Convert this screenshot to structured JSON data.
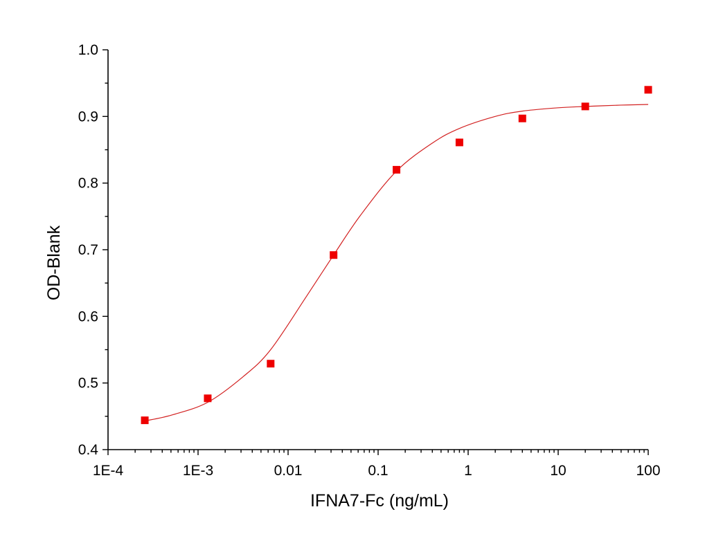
{
  "chart_data": {
    "type": "scatter",
    "xlabel": "IFNA7-Fc (ng/mL)",
    "ylabel": "OD-Blank",
    "x_scale": "log",
    "xlim": [
      0.0001,
      100
    ],
    "ylim": [
      0.4,
      1.0
    ],
    "x_tick_values": [
      0.0001,
      0.001,
      0.01,
      0.1,
      1,
      10,
      100
    ],
    "x_tick_labels": [
      "1E-4",
      "1E-3",
      "0.01",
      "0.1",
      "1",
      "10",
      "100"
    ],
    "y_tick_values": [
      0.4,
      0.5,
      0.6,
      0.7,
      0.8,
      0.9,
      1.0
    ],
    "y_tick_labels": [
      "0.4",
      "0.5",
      "0.6",
      "0.7",
      "0.8",
      "0.9",
      "1.0"
    ],
    "grid": false,
    "legend": "none",
    "series": [
      {
        "type": "scatter",
        "marker": "square",
        "color": "#ee0000",
        "x": [
          0.000256,
          0.00128,
          0.0064,
          0.032,
          0.16,
          0.8,
          4,
          20,
          100
        ],
        "y": [
          0.444,
          0.477,
          0.529,
          0.692,
          0.82,
          0.861,
          0.897,
          0.915,
          0.94
        ]
      },
      {
        "type": "line",
        "color": "#d22020",
        "x": [
          0.000256,
          0.000512,
          0.00128,
          0.0032,
          0.0064,
          0.016,
          0.032,
          0.064,
          0.16,
          0.4,
          0.8,
          2,
          4,
          10,
          20,
          50,
          100
        ],
        "y": [
          0.443,
          0.452,
          0.471,
          0.51,
          0.55,
          0.63,
          0.692,
          0.752,
          0.818,
          0.86,
          0.882,
          0.9,
          0.908,
          0.913,
          0.915,
          0.917,
          0.918
        ]
      }
    ]
  }
}
